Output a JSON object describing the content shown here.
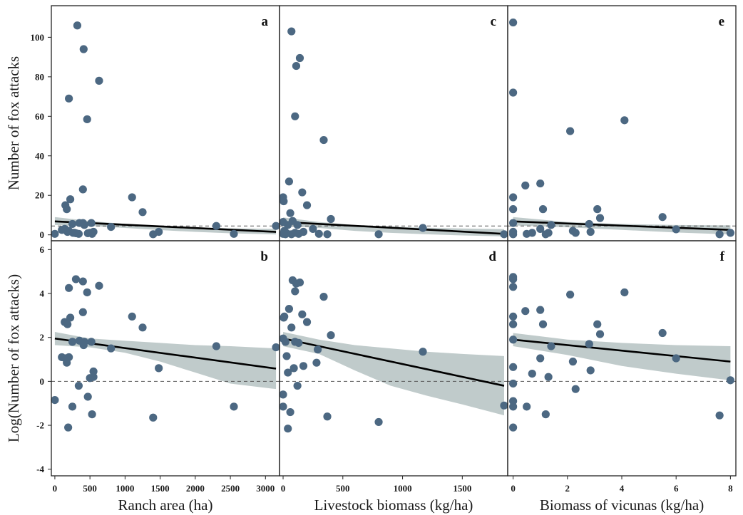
{
  "colors": {
    "point": "#4c6882",
    "ribbon": "#b9c5c5",
    "line": "#000000",
    "frame": "#222222",
    "ref": "#555555"
  },
  "chart_data": [
    {
      "panel": "a",
      "type": "scatter",
      "letter": "a",
      "xlabel": "",
      "ylabel": "Number of fox attacks",
      "xlim": [
        -50,
        3200
      ],
      "ylim": [
        -3,
        116
      ],
      "xticks": [],
      "yticks": [
        0,
        20,
        40,
        60,
        80,
        100
      ],
      "ref_y": 4.5,
      "fit": {
        "x": [
          0,
          3150
        ],
        "y": [
          6.8,
          1.5
        ]
      },
      "ci": {
        "x": [
          0,
          500,
          1000,
          1500,
          2000,
          2500,
          3150
        ],
        "upper": [
          9.0,
          7.0,
          5.5,
          4.5,
          3.8,
          3.3,
          3.0
        ],
        "lower": [
          5.0,
          4.5,
          3.5,
          2.4,
          1.5,
          0.8,
          0.2
        ]
      },
      "points": [
        [
          0,
          0.5
        ],
        [
          100,
          2.5
        ],
        [
          140,
          3
        ],
        [
          150,
          15
        ],
        [
          170,
          13
        ],
        [
          180,
          1.5
        ],
        [
          200,
          2
        ],
        [
          200,
          69
        ],
        [
          220,
          18
        ],
        [
          250,
          5.5
        ],
        [
          260,
          1
        ],
        [
          280,
          1
        ],
        [
          300,
          0.8
        ],
        [
          320,
          106
        ],
        [
          340,
          0.5
        ],
        [
          350,
          6
        ],
        [
          400,
          23
        ],
        [
          400,
          6
        ],
        [
          410,
          94
        ],
        [
          420,
          5
        ],
        [
          460,
          58.5
        ],
        [
          470,
          0.8
        ],
        [
          500,
          1
        ],
        [
          520,
          6
        ],
        [
          530,
          0.5
        ],
        [
          550,
          1.5
        ],
        [
          630,
          78
        ],
        [
          800,
          4
        ],
        [
          1100,
          19
        ],
        [
          1250,
          11.5
        ],
        [
          1400,
          0.3
        ],
        [
          1480,
          1.5
        ],
        [
          2300,
          4.5
        ],
        [
          2550,
          0.5
        ],
        [
          3150,
          4.5
        ]
      ]
    },
    {
      "panel": "b",
      "type": "scatter",
      "letter": "b",
      "xlabel": "Ranch area (ha)",
      "ylabel": "Log(Number of fox attacks)",
      "xlim": [
        -50,
        3200
      ],
      "ylim": [
        -4.3,
        6.4
      ],
      "xticks": [
        0,
        500,
        1000,
        1500,
        2000,
        2500,
        3000
      ],
      "yticks": [
        -4,
        -2,
        0,
        2,
        4,
        6
      ],
      "ref_y": 0,
      "fit": {
        "x": [
          0,
          3150
        ],
        "y": [
          1.95,
          0.58
        ]
      },
      "ci": {
        "x": [
          0,
          500,
          1000,
          1500,
          2000,
          2500,
          3150
        ],
        "upper": [
          2.25,
          1.95,
          1.85,
          1.75,
          1.65,
          1.6,
          1.5
        ],
        "lower": [
          1.65,
          1.55,
          1.3,
          0.9,
          0.4,
          -0.1,
          -0.35
        ]
      },
      "points": [
        [
          0,
          -0.85
        ],
        [
          100,
          1.1
        ],
        [
          140,
          2.7
        ],
        [
          150,
          1.05
        ],
        [
          170,
          0.85
        ],
        [
          180,
          2.6
        ],
        [
          190,
          -2.1
        ],
        [
          200,
          1.1
        ],
        [
          200,
          4.25
        ],
        [
          220,
          2.9
        ],
        [
          250,
          1.8
        ],
        [
          250,
          -1.15
        ],
        [
          300,
          4.65
        ],
        [
          340,
          -0.2
        ],
        [
          350,
          1.85
        ],
        [
          400,
          4.55
        ],
        [
          400,
          3.15
        ],
        [
          410,
          1.65
        ],
        [
          420,
          1.8
        ],
        [
          460,
          4.05
        ],
        [
          470,
          -0.7
        ],
        [
          500,
          0.15
        ],
        [
          520,
          1.8
        ],
        [
          530,
          -1.5
        ],
        [
          550,
          0.45
        ],
        [
          550,
          0.2
        ],
        [
          630,
          4.35
        ],
        [
          800,
          1.5
        ],
        [
          1100,
          2.95
        ],
        [
          1250,
          2.45
        ],
        [
          1400,
          -1.65
        ],
        [
          1480,
          0.6
        ],
        [
          2300,
          1.6
        ],
        [
          2550,
          -1.15
        ],
        [
          3150,
          1.55
        ]
      ]
    },
    {
      "panel": "c",
      "type": "scatter",
      "letter": "c",
      "xlabel": "",
      "ylabel": "",
      "xlim": [
        -30,
        1880
      ],
      "ylim": [
        -3,
        116
      ],
      "xticks": [],
      "yticks": [],
      "ref_y": 4.5,
      "fit": {
        "x": [
          0,
          1850
        ],
        "y": [
          6.5,
          0.5
        ]
      },
      "ci": {
        "x": [
          0,
          300,
          600,
          900,
          1200,
          1500,
          1850
        ],
        "upper": [
          8.8,
          6.5,
          5.0,
          4.2,
          3.6,
          3.2,
          2.9
        ],
        "lower": [
          4.5,
          3.5,
          2.0,
          1.0,
          0.3,
          -0.3,
          -0.8
        ]
      },
      "points": [
        [
          0,
          0.5
        ],
        [
          0,
          6.5
        ],
        [
          0,
          19
        ],
        [
          5,
          17
        ],
        [
          10,
          2
        ],
        [
          20,
          0.3
        ],
        [
          30,
          0.8
        ],
        [
          40,
          5
        ],
        [
          50,
          27
        ],
        [
          60,
          11
        ],
        [
          70,
          0.3
        ],
        [
          70,
          103
        ],
        [
          80,
          7
        ],
        [
          100,
          60
        ],
        [
          100,
          1
        ],
        [
          110,
          85.5
        ],
        [
          120,
          5
        ],
        [
          130,
          0.5
        ],
        [
          140,
          89.5
        ],
        [
          160,
          21.5
        ],
        [
          170,
          1.5
        ],
        [
          200,
          15
        ],
        [
          250,
          3
        ],
        [
          300,
          0.5
        ],
        [
          340,
          48
        ],
        [
          370,
          0.3
        ],
        [
          400,
          8
        ],
        [
          800,
          0.3
        ],
        [
          1170,
          3.5
        ],
        [
          1850,
          0.3
        ]
      ]
    },
    {
      "panel": "d",
      "type": "scatter",
      "letter": "d",
      "xlabel": "Livestock biomass (kg/ha)",
      "ylabel": "",
      "xlim": [
        -30,
        1880
      ],
      "ylim": [
        -4.3,
        6.4
      ],
      "xticks": [
        0,
        500,
        1000,
        1500
      ],
      "yticks": [],
      "ref_y": 0,
      "fit": {
        "x": [
          0,
          1850
        ],
        "y": [
          1.95,
          -0.2
        ]
      },
      "ci": {
        "x": [
          0,
          300,
          600,
          900,
          1200,
          1500,
          1850
        ],
        "upper": [
          2.25,
          1.9,
          1.65,
          1.5,
          1.35,
          1.25,
          1.15
        ],
        "lower": [
          1.6,
          1.25,
          0.5,
          -0.2,
          -0.65,
          -1.05,
          -1.55
        ]
      },
      "points": [
        [
          0,
          -0.6
        ],
        [
          0,
          -1.15
        ],
        [
          0,
          1.95
        ],
        [
          5,
          2.9
        ],
        [
          10,
          2.95
        ],
        [
          20,
          1.8
        ],
        [
          30,
          1.15
        ],
        [
          40,
          0.4
        ],
        [
          40,
          -2.15
        ],
        [
          50,
          3.3
        ],
        [
          60,
          -1.4
        ],
        [
          70,
          2.45
        ],
        [
          80,
          4.6
        ],
        [
          90,
          0.6
        ],
        [
          100,
          4.1
        ],
        [
          100,
          1.8
        ],
        [
          110,
          4.45
        ],
        [
          120,
          -0.2
        ],
        [
          130,
          1.75
        ],
        [
          140,
          4.5
        ],
        [
          160,
          3.05
        ],
        [
          170,
          0.7
        ],
        [
          200,
          2.7
        ],
        [
          280,
          0.85
        ],
        [
          290,
          1.45
        ],
        [
          340,
          3.85
        ],
        [
          370,
          -1.6
        ],
        [
          400,
          2.1
        ],
        [
          800,
          -1.85
        ],
        [
          1170,
          1.35
        ],
        [
          1850,
          -1.1
        ]
      ]
    },
    {
      "panel": "e",
      "type": "scatter",
      "letter": "e",
      "xlabel": "",
      "ylabel": "",
      "xlim": [
        -0.2,
        8.2
      ],
      "ylim": [
        -3,
        116
      ],
      "xticks": [],
      "yticks": [],
      "ref_y": 4.5,
      "fit": {
        "x": [
          0,
          8
        ],
        "y": [
          6.8,
          2.5
        ]
      },
      "ci": {
        "x": [
          0,
          2,
          4,
          6,
          8
        ],
        "upper": [
          9.0,
          6.5,
          5.5,
          5.0,
          4.8
        ],
        "lower": [
          4.8,
          3.8,
          2.5,
          1.2,
          0.2
        ]
      },
      "points": [
        [
          0,
          0.3
        ],
        [
          0,
          1.5
        ],
        [
          0,
          6
        ],
        [
          0,
          13
        ],
        [
          0,
          19
        ],
        [
          0,
          72
        ],
        [
          0,
          107.5
        ],
        [
          0.45,
          25
        ],
        [
          0.5,
          0.5
        ],
        [
          0.7,
          1
        ],
        [
          1,
          3
        ],
        [
          1,
          26
        ],
        [
          1.1,
          13
        ],
        [
          1.2,
          0.3
        ],
        [
          1.3,
          1
        ],
        [
          1.4,
          5
        ],
        [
          2.1,
          52.5
        ],
        [
          2.2,
          2
        ],
        [
          2.3,
          1
        ],
        [
          2.8,
          5.5
        ],
        [
          2.85,
          1.5
        ],
        [
          3.1,
          13
        ],
        [
          3.2,
          8.5
        ],
        [
          4.1,
          58
        ],
        [
          5.5,
          9
        ],
        [
          6.0,
          2.8
        ],
        [
          7.6,
          0.3
        ],
        [
          8.0,
          1
        ]
      ]
    },
    {
      "panel": "f",
      "type": "scatter",
      "letter": "f",
      "xlabel": "Biomass of vicunas (kg/ha)",
      "ylabel": "",
      "xlim": [
        -0.2,
        8.2
      ],
      "ylim": [
        -4.3,
        6.4
      ],
      "xticks": [
        0,
        2,
        4,
        6,
        8
      ],
      "yticks": [],
      "ref_y": 0,
      "fit": {
        "x": [
          0,
          8
        ],
        "y": [
          1.9,
          0.9
        ]
      },
      "ci": {
        "x": [
          0,
          2,
          4,
          6,
          8
        ],
        "upper": [
          2.2,
          1.9,
          1.75,
          1.65,
          1.6
        ],
        "lower": [
          1.6,
          1.2,
          0.7,
          0.35,
          0.05
        ]
      },
      "points": [
        [
          0,
          -0.9
        ],
        [
          0,
          -1.15
        ],
        [
          0,
          -0.1
        ],
        [
          0,
          0.65
        ],
        [
          0,
          1.9
        ],
        [
          0,
          2.6
        ],
        [
          0,
          2.95
        ],
        [
          0,
          4.3
        ],
        [
          0,
          4.65
        ],
        [
          0,
          4.75
        ],
        [
          0,
          -2.1
        ],
        [
          0.45,
          3.2
        ],
        [
          0.5,
          -1.15
        ],
        [
          0.7,
          0.35
        ],
        [
          1,
          1.05
        ],
        [
          1,
          3.25
        ],
        [
          1.1,
          2.6
        ],
        [
          1.2,
          -1.5
        ],
        [
          1.3,
          0.2
        ],
        [
          1.4,
          1.6
        ],
        [
          2.1,
          3.95
        ],
        [
          2.2,
          0.9
        ],
        [
          2.3,
          -0.35
        ],
        [
          2.8,
          1.7
        ],
        [
          2.85,
          0.5
        ],
        [
          3.1,
          2.6
        ],
        [
          3.2,
          2.15
        ],
        [
          4.1,
          4.05
        ],
        [
          5.5,
          2.2
        ],
        [
          6.0,
          1.05
        ],
        [
          7.6,
          -1.55
        ],
        [
          8.0,
          0.05
        ]
      ]
    }
  ]
}
